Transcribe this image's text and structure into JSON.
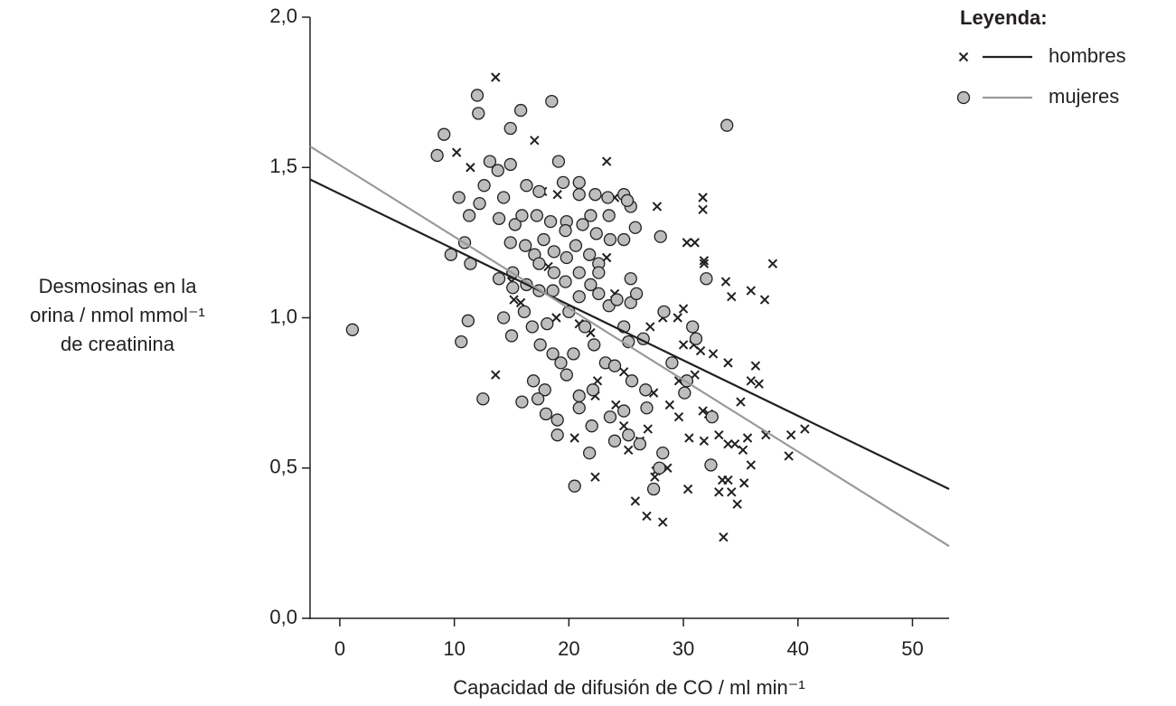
{
  "chart_data": {
    "type": "scatter",
    "x_label": "Capacidad de difusión de CO / ml min⁻¹",
    "y_label": [
      "Desmosinas en la",
      "orina / nmol mmol⁻¹",
      "de creatinina"
    ],
    "legend_title": "Leyenda:",
    "legend": "upper right",
    "xlim": [
      -2.6,
      53.2
    ],
    "ylim": [
      0,
      2
    ],
    "xticks": [
      0,
      10,
      20,
      30,
      40,
      50
    ],
    "yticks": [
      {
        "value": 0,
        "label": "0,0"
      },
      {
        "value": 0.5,
        "label": "0,5"
      },
      {
        "value": 1,
        "label": "1,0"
      },
      {
        "value": 1.5,
        "label": "1,5"
      },
      {
        "value": 2,
        "label": "2,0"
      }
    ],
    "series": [
      {
        "name": "hombres",
        "marker": "x",
        "color": "#231f20",
        "line_color": "#231f20",
        "x": [
          13.6,
          10.2,
          11.4,
          17.0,
          23.3,
          17.7,
          24.0,
          27.7,
          31.7,
          31.7,
          30.3,
          31.0,
          31.8,
          31.8,
          37.8,
          33.7,
          34.2,
          35.9,
          37.1,
          23.3,
          24.0,
          15.0,
          15.2,
          13.6,
          30.0,
          29.5,
          28.2,
          27.1,
          30.0,
          30.9,
          31.5,
          32.6,
          33.9,
          36.3,
          35.9,
          36.6,
          31.0,
          29.6,
          27.4,
          28.8,
          29.6,
          31.7,
          32.2,
          35.0,
          37.2,
          39.4,
          40.6,
          39.2,
          30.5,
          31.8,
          33.1,
          33.9,
          34.5,
          35.2,
          35.9,
          35.6,
          30.4,
          33.4,
          33.9,
          34.2,
          33.1,
          34.7,
          35.3,
          33.5,
          28.2,
          26.8,
          25.8,
          27.6,
          28.6,
          27.5,
          25.2,
          26.2,
          26.9,
          24.8,
          24.1,
          20.5,
          22.3,
          22.5,
          22.3,
          24.8,
          18.9,
          18.2,
          19.0,
          15.8,
          21.9,
          20.9
        ],
        "values": [
          1.8,
          1.55,
          1.5,
          1.59,
          1.52,
          1.42,
          1.4,
          1.37,
          1.4,
          1.36,
          1.25,
          1.25,
          1.19,
          1.18,
          1.18,
          1.12,
          1.07,
          1.09,
          1.06,
          1.2,
          1.08,
          1.12,
          1.06,
          0.81,
          1.03,
          1.0,
          1.0,
          0.97,
          0.91,
          0.91,
          0.89,
          0.88,
          0.85,
          0.84,
          0.79,
          0.78,
          0.81,
          0.79,
          0.75,
          0.71,
          0.67,
          0.69,
          0.68,
          0.72,
          0.61,
          0.61,
          0.63,
          0.54,
          0.6,
          0.59,
          0.61,
          0.58,
          0.58,
          0.56,
          0.51,
          0.6,
          0.43,
          0.46,
          0.46,
          0.42,
          0.42,
          0.38,
          0.45,
          0.27,
          0.32,
          0.34,
          0.39,
          0.49,
          0.5,
          0.47,
          0.56,
          0.59,
          0.63,
          0.64,
          0.71,
          0.6,
          0.47,
          0.79,
          0.74,
          0.82,
          1.0,
          1.17,
          1.41,
          1.05,
          0.95,
          0.98
        ],
        "fit_x": [
          -2.6,
          53.2
        ],
        "fit_values": [
          1.46,
          0.43
        ]
      },
      {
        "name": "mujeres",
        "marker": "circle",
        "color": "#bdbdbd",
        "line_color": "#9a9a9a",
        "x": [
          1.1,
          9.1,
          8.5,
          12.0,
          12.1,
          15.8,
          18.5,
          14.9,
          13.1,
          14.9,
          13.8,
          12.6,
          10.4,
          11.3,
          12.2,
          14.3,
          19.1,
          16.3,
          17.4,
          19.5,
          20.9,
          20.9,
          22.3,
          24.8,
          23.4,
          25.4,
          25.1,
          33.8,
          13.9,
          15.3,
          15.9,
          17.2,
          18.4,
          19.8,
          21.2,
          21.9,
          23.5,
          25.8,
          28.0,
          22.4,
          23.6,
          24.8,
          14.9,
          16.2,
          17.8,
          19.7,
          20.6,
          17.0,
          18.7,
          19.8,
          21.8,
          22.6,
          17.4,
          18.7,
          20.9,
          22.6,
          25.4,
          32.0,
          10.9,
          9.7,
          11.4,
          13.9,
          15.1,
          15.1,
          16.3,
          17.4,
          18.6,
          19.7,
          21.9,
          22.6,
          20.9,
          23.5,
          24.2,
          25.4,
          25.9,
          11.2,
          10.6,
          12.5,
          14.3,
          15.0,
          16.1,
          16.8,
          18.1,
          17.5,
          20.0,
          21.4,
          18.6,
          19.3,
          20.4,
          22.2,
          23.2,
          24.8,
          25.2,
          26.5,
          28.3,
          29.0,
          30.8,
          31.1,
          30.3,
          30.1,
          16.9,
          17.9,
          19.8,
          20.9,
          15.9,
          17.3,
          18.0,
          19.0,
          20.9,
          22.1,
          23.6,
          24.8,
          26.8,
          19.0,
          22.0,
          24.0,
          26.2,
          25.2,
          28.2,
          27.9,
          27.4,
          21.8,
          20.5,
          26.7,
          32.5,
          32.4,
          25.5,
          24.0
        ],
        "values": [
          0.96,
          1.61,
          1.54,
          1.74,
          1.68,
          1.69,
          1.72,
          1.63,
          1.52,
          1.51,
          1.49,
          1.44,
          1.4,
          1.34,
          1.38,
          1.4,
          1.52,
          1.44,
          1.42,
          1.45,
          1.45,
          1.41,
          1.41,
          1.41,
          1.4,
          1.37,
          1.39,
          1.64,
          1.33,
          1.31,
          1.34,
          1.34,
          1.32,
          1.32,
          1.31,
          1.34,
          1.34,
          1.3,
          1.27,
          1.28,
          1.26,
          1.26,
          1.25,
          1.24,
          1.26,
          1.29,
          1.24,
          1.21,
          1.22,
          1.2,
          1.21,
          1.18,
          1.18,
          1.15,
          1.15,
          1.15,
          1.13,
          1.13,
          1.25,
          1.21,
          1.18,
          1.13,
          1.15,
          1.1,
          1.11,
          1.09,
          1.09,
          1.12,
          1.11,
          1.08,
          1.07,
          1.04,
          1.06,
          1.05,
          1.08,
          0.99,
          0.92,
          0.73,
          1.0,
          0.94,
          1.02,
          0.97,
          0.98,
          0.91,
          1.02,
          0.97,
          0.88,
          0.85,
          0.88,
          0.91,
          0.85,
          0.97,
          0.92,
          0.93,
          1.02,
          0.85,
          0.97,
          0.93,
          0.79,
          0.75,
          0.79,
          0.76,
          0.81,
          0.74,
          0.72,
          0.73,
          0.68,
          0.66,
          0.7,
          0.76,
          0.67,
          0.69,
          0.7,
          0.61,
          0.64,
          0.59,
          0.58,
          0.61,
          0.55,
          0.5,
          0.43,
          0.55,
          0.44,
          0.76,
          0.67,
          0.51,
          0.79,
          0.84
        ],
        "fit_x": [
          -2.6,
          53.2
        ],
        "fit_values": [
          1.57,
          0.24
        ]
      }
    ]
  }
}
